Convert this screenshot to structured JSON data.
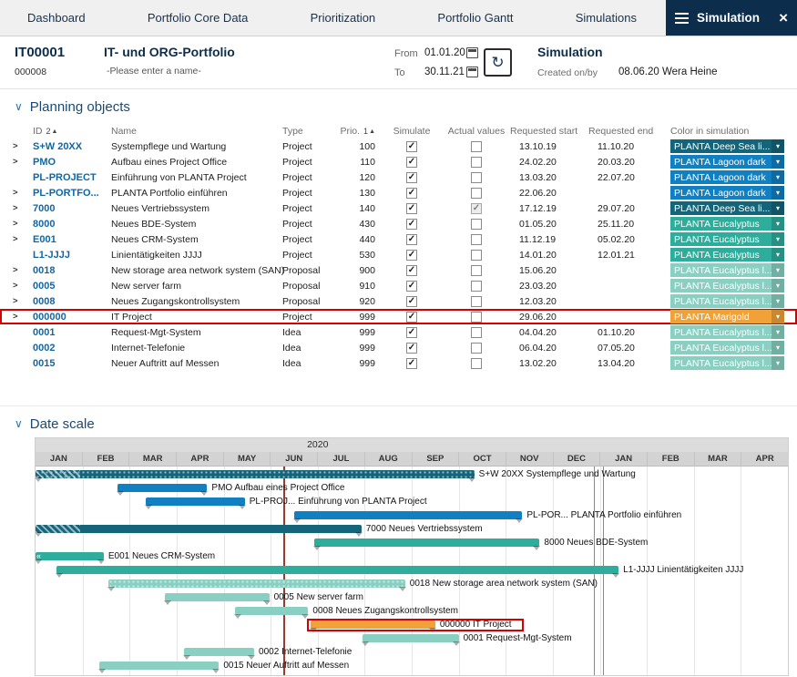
{
  "icons": {
    "menu": "≡",
    "close": "×",
    "refresh": "↻",
    "section_chevron": "∨",
    "dropdown": "▾",
    "expand": ">",
    "sort_asc": "▲",
    "check": "✓",
    "clipped": "«"
  },
  "theme": {
    "navy": "#0d2d4d",
    "link_blue": "#0f67a7",
    "highlight_red": "#d60000",
    "current_date_line": "#9c3a2e"
  },
  "colors": {
    "deep_sea": "#14657a",
    "lagoon": "#1180c2",
    "eucalyptus": "#2ead9c",
    "eucalyptus_light": "#8ad0c2",
    "marigold": "#f0a238"
  },
  "nav": {
    "tabs": [
      {
        "label": "Dashboard"
      },
      {
        "label": "Portfolio Core Data"
      },
      {
        "label": "Prioritization"
      },
      {
        "label": "Portfolio Gantt"
      },
      {
        "label": "Simulations"
      }
    ],
    "active": {
      "label": "Simulation"
    }
  },
  "header": {
    "portfolio_id": "IT00001",
    "portfolio_code": "000008",
    "portfolio_name": "IT- und ORG-Portfolio",
    "portfolio_subtitle": "-Please enter a name-",
    "from_label": "From",
    "from_value": "01.01.20",
    "to_label": "To",
    "to_value": "30.11.21",
    "sim_title": "Simulation",
    "created_label": "Created on/by",
    "created_date": "08.06.20",
    "created_by": "Wera Heine"
  },
  "planning": {
    "title": "Planning objects",
    "columns": {
      "id": "ID",
      "id_sort": "2",
      "name": "Name",
      "type": "Type",
      "prio": "Prio.",
      "prio_sort": "1",
      "simulate": "Simulate",
      "actual": "Actual values",
      "start": "Requested start",
      "end": "Requested end",
      "color": "Color in simulation"
    },
    "rows": [
      {
        "expand": true,
        "id": "S+W 20XX",
        "name": "Systempflege und Wartung",
        "type": "Project",
        "prio": "100",
        "simulate": true,
        "actual": false,
        "start": "13.10.19",
        "end": "11.10.20",
        "color": "deep_sea",
        "color_label": "PLANTA Deep Sea li...",
        "highlight": false
      },
      {
        "expand": true,
        "id": "PMO",
        "name": "Aufbau eines Project Office",
        "type": "Project",
        "prio": "110",
        "simulate": true,
        "actual": false,
        "start": "24.02.20",
        "end": "20.03.20",
        "color": "lagoon",
        "color_label": "PLANTA Lagoon dark",
        "highlight": false
      },
      {
        "expand": false,
        "id": "PL-PROJECT",
        "name": "Einführung von PLANTA Project",
        "type": "Project",
        "prio": "120",
        "simulate": true,
        "actual": false,
        "start": "13.03.20",
        "end": "22.07.20",
        "color": "lagoon",
        "color_label": "PLANTA Lagoon dark",
        "highlight": false
      },
      {
        "expand": true,
        "id": "PL-PORTFO...",
        "name": "PLANTA Portfolio einführen",
        "type": "Project",
        "prio": "130",
        "simulate": true,
        "actual": false,
        "start": "22.06.20",
        "end": "",
        "color": "lagoon",
        "color_label": "PLANTA Lagoon dark",
        "highlight": false
      },
      {
        "expand": true,
        "id": "7000",
        "name": "Neues Vertriebssystem",
        "type": "Project",
        "prio": "140",
        "simulate": true,
        "actual": true,
        "start": "17.12.19",
        "end": "29.07.20",
        "color": "deep_sea",
        "color_label": "PLANTA Deep Sea li...",
        "highlight": false
      },
      {
        "expand": true,
        "id": "8000",
        "name": "Neues BDE-System",
        "type": "Project",
        "prio": "430",
        "simulate": true,
        "actual": false,
        "start": "01.05.20",
        "end": "25.11.20",
        "color": "eucalyptus",
        "color_label": "PLANTA Eucalyptus",
        "highlight": false
      },
      {
        "expand": true,
        "id": "E001",
        "name": "Neues CRM-System",
        "type": "Project",
        "prio": "440",
        "simulate": true,
        "actual": false,
        "start": "11.12.19",
        "end": "05.02.20",
        "color": "eucalyptus",
        "color_label": "PLANTA Eucalyptus",
        "highlight": false
      },
      {
        "expand": false,
        "id": "L1-JJJJ",
        "name": "Linientätigkeiten JJJJ",
        "type": "Project",
        "prio": "530",
        "simulate": true,
        "actual": false,
        "start": "14.01.20",
        "end": "12.01.21",
        "color": "eucalyptus",
        "color_label": "PLANTA Eucalyptus",
        "highlight": false
      },
      {
        "expand": true,
        "id": "0018",
        "name": "New storage area network system (SAN)",
        "type": "Proposal",
        "prio": "900",
        "simulate": true,
        "actual": false,
        "start": "15.06.20",
        "end": "",
        "color": "eucalyptus_light",
        "color_label": "PLANTA Eucalyptus l...",
        "highlight": false
      },
      {
        "expand": true,
        "id": "0005",
        "name": "New server farm",
        "type": "Proposal",
        "prio": "910",
        "simulate": true,
        "actual": false,
        "start": "23.03.20",
        "end": "",
        "color": "eucalyptus_light",
        "color_label": "PLANTA Eucalyptus l...",
        "highlight": false
      },
      {
        "expand": true,
        "id": "0008",
        "name": "Neues Zugangskontrollsystem",
        "type": "Proposal",
        "prio": "920",
        "simulate": true,
        "actual": false,
        "start": "12.03.20",
        "end": "",
        "color": "eucalyptus_light",
        "color_label": "PLANTA Eucalyptus l...",
        "highlight": false
      },
      {
        "expand": true,
        "id": "000000",
        "name": "IT Project",
        "type": "Project",
        "prio": "999",
        "simulate": true,
        "actual": false,
        "start": "29.06.20",
        "end": "",
        "color": "marigold",
        "color_label": "PLANTA Marigold",
        "highlight": true
      },
      {
        "expand": false,
        "id": "0001",
        "name": "Request-Mgt-System",
        "type": "Idea",
        "prio": "999",
        "simulate": true,
        "actual": false,
        "start": "04.04.20",
        "end": "01.10.20",
        "color": "eucalyptus_light",
        "color_label": "PLANTA Eucalyptus l...",
        "highlight": false
      },
      {
        "expand": false,
        "id": "0002",
        "name": "Internet-Telefonie",
        "type": "Idea",
        "prio": "999",
        "simulate": true,
        "actual": false,
        "start": "06.04.20",
        "end": "07.05.20",
        "color": "eucalyptus_light",
        "color_label": "PLANTA Eucalyptus l...",
        "highlight": false
      },
      {
        "expand": false,
        "id": "0015",
        "name": "Neuer Auftritt auf Messen",
        "type": "Idea",
        "prio": "999",
        "simulate": true,
        "actual": false,
        "start": "13.02.20",
        "end": "13.04.20",
        "color": "eucalyptus_light",
        "color_label": "PLANTA Eucalyptus l...",
        "highlight": false
      }
    ]
  },
  "gantt": {
    "title": "Date scale",
    "year": "2020",
    "months": [
      "JAN",
      "FEB",
      "MAR",
      "APR",
      "MAY",
      "JUN",
      "JUL",
      "AUG",
      "SEP",
      "OCT",
      "NOV",
      "DEC",
      "JAN",
      "FEB",
      "MAR",
      "APR"
    ],
    "bars": [
      {
        "row": 0,
        "start": 0,
        "end": 9.33,
        "color": "deep_sea",
        "pattern": "dots",
        "hatch_until": 0.95,
        "label": "S+W 20XX Systempflege und Wartung"
      },
      {
        "row": 1,
        "start": 1.75,
        "end": 3.65,
        "color": "lagoon",
        "label": "PMO  Aufbau eines Project Office"
      },
      {
        "row": 2,
        "start": 2.35,
        "end": 4.45,
        "color": "lagoon",
        "label": "PL-PROJ...  Einführung von PLANTA Project"
      },
      {
        "row": 3,
        "start": 5.5,
        "end": 10.35,
        "color": "lagoon",
        "label": "PL-POR...  PLANTA Portfolio einführen"
      },
      {
        "row": 4,
        "start": 0,
        "end": 6.93,
        "color": "deep_sea",
        "hatch_until": 0.95,
        "label": "7000 Neues Vertriebssystem"
      },
      {
        "row": 5,
        "start": 5.93,
        "end": 10.72,
        "color": "eucalyptus",
        "label": "8000 Neues BDE-System"
      },
      {
        "row": 6,
        "start": 0,
        "end": 1.45,
        "color": "eucalyptus",
        "prefix": "«",
        "label": "E001 Neues CRM-System"
      },
      {
        "row": 7,
        "start": 0.45,
        "end": 12.4,
        "color": "eucalyptus",
        "label": "L1-JJJJ Linientätigkeiten JJJJ"
      },
      {
        "row": 8,
        "start": 1.55,
        "end": 7.86,
        "color": "eucalyptus_light",
        "pattern": "dots",
        "label": "0018 New storage area network system (SAN)"
      },
      {
        "row": 9,
        "start": 2.75,
        "end": 4.97,
        "color": "eucalyptus_light",
        "label": "0005 New server farm"
      },
      {
        "row": 10,
        "start": 4.25,
        "end": 5.8,
        "color": "eucalyptus_light",
        "label": "0008 Neues Zugangskontrollsystem"
      },
      {
        "row": 11,
        "start": 5.85,
        "end": 8.5,
        "color": "marigold",
        "label": "000000 IT Project"
      },
      {
        "row": 12,
        "start": 6.95,
        "end": 9.0,
        "color": "eucalyptus_light",
        "label": "0001 Request-Mgt-System"
      },
      {
        "row": 13,
        "start": 3.15,
        "end": 4.65,
        "color": "eucalyptus_light",
        "label": "0002 Internet-Telefonie"
      },
      {
        "row": 14,
        "start": 1.35,
        "end": 3.9,
        "color": "eucalyptus_light",
        "label": "0015 Neuer Auftritt auf Messen"
      }
    ],
    "markers": [
      {
        "name": "current-date-line",
        "m": 5.26,
        "color": "#9c3a2e",
        "width": 2
      },
      {
        "name": "year-boundary-line",
        "m": 11.88,
        "color": "#8a8a8a",
        "width": 1
      },
      {
        "name": "year-boundary-line",
        "m": 12.06,
        "color": "#8a8a8a",
        "width": 1
      }
    ],
    "highlight_box": {
      "row": 11,
      "start": 5.78,
      "end": 10.38
    }
  }
}
